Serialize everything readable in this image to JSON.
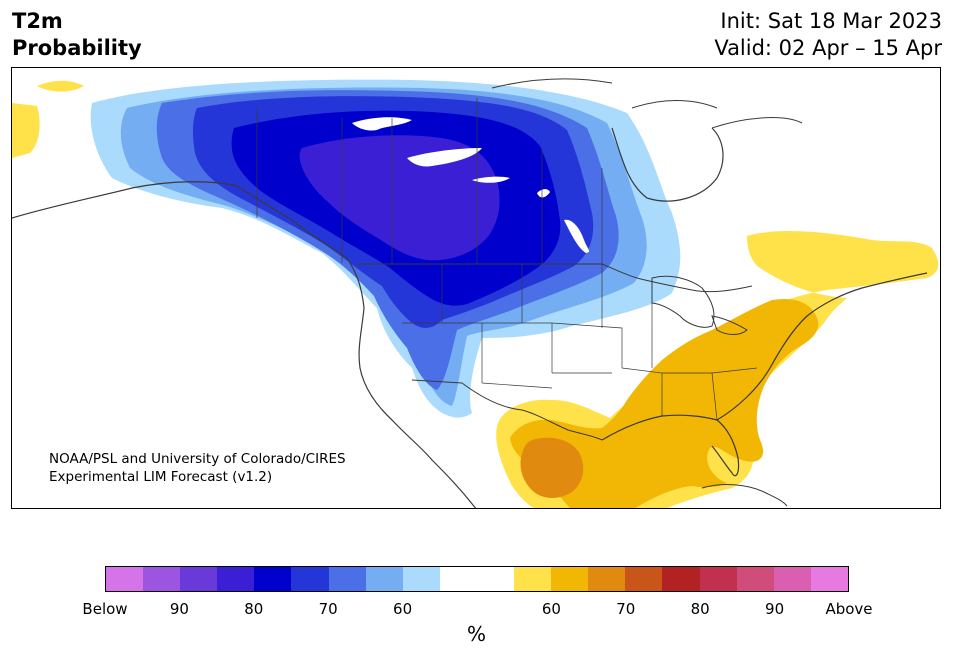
{
  "header": {
    "title_line1": "T2m",
    "title_line2": "Probability",
    "init": "Init: Sat 18 Mar 2023",
    "valid": "Valid: 02 Apr – 15 Apr"
  },
  "credit": {
    "line1": "NOAA/PSL and University of Colorado/CIRES",
    "line2": "Experimental LIM Forecast (v1.2)"
  },
  "colorbar": {
    "colors": [
      "#d474e8",
      "#9b55e0",
      "#6a3ad8",
      "#3a1fd4",
      "#0000cc",
      "#2536d8",
      "#4a6fe6",
      "#74adf2",
      "#aadbfc",
      "#ffffff",
      "#ffffff",
      "#ffe14a",
      "#f2b705",
      "#e08a10",
      "#c8561a",
      "#b22222",
      "#c23050",
      "#d04d7b",
      "#da5fb0",
      "#e77ae0"
    ],
    "tick_labels": [
      "Below",
      "90",
      "80",
      "70",
      "60",
      "60",
      "70",
      "80",
      "90",
      "Above"
    ],
    "unit": "%"
  },
  "map": {
    "region": "North America",
    "variable": "2-meter temperature probability",
    "category_colors": {
      "below_90": "#9b55e0",
      "below_80": "#3a1fd4",
      "below_75": "#0000cc",
      "below_70": "#2536d8",
      "below_65": "#4a6fe6",
      "below_60": "#74adf2",
      "below_55": "#aadbfc",
      "near_normal": "#ffffff",
      "above_55": "#ffe14a",
      "above_60": "#f2b705",
      "above_65": "#e08a10",
      "border": "#3a3a3a",
      "lake": "#ffffff"
    }
  }
}
